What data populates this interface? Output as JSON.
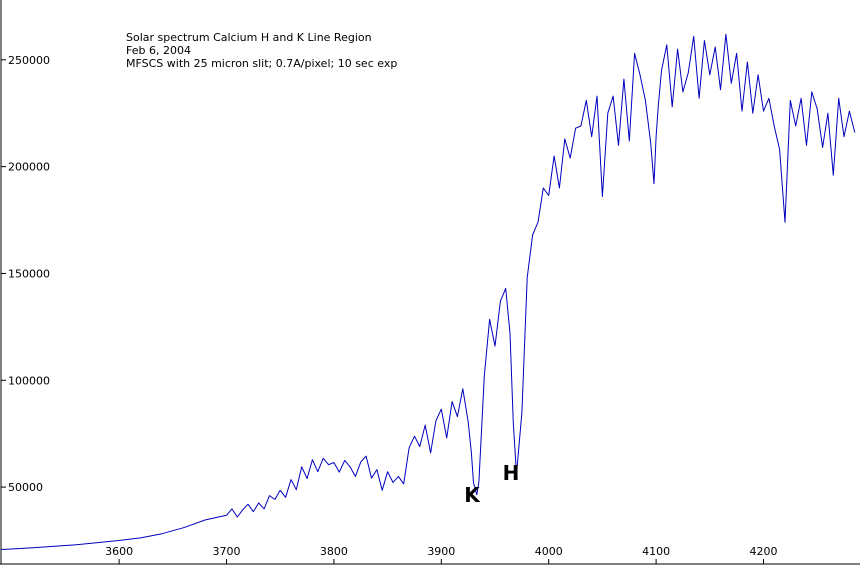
{
  "chart_data": {
    "type": "line",
    "title_lines": [
      "Solar spectrum Calcium H and K Line Region",
      "Feb 6, 2004",
      "MFSCS with 25 micron slit; 0.7A/pixel; 10 sec exp"
    ],
    "xlabel": "",
    "ylabel": "",
    "xlim": [
      3490,
      4288
    ],
    "ylim": [
      14000,
      278000
    ],
    "x_ticks": [
      3600,
      3700,
      3800,
      3900,
      4000,
      4100,
      4200
    ],
    "y_ticks": [
      50000,
      100000,
      150000,
      200000,
      250000
    ],
    "grid": false,
    "legend": "none",
    "line_color": "#0000c0",
    "series": [
      {
        "x": [
          3490,
          3500,
          3520,
          3540,
          3560,
          3580,
          3600,
          3620,
          3640,
          3660,
          3680,
          3700,
          3705,
          3710,
          3715,
          3720,
          3725,
          3730,
          3735,
          3740,
          3745,
          3750,
          3755,
          3760,
          3765,
          3770,
          3775,
          3780,
          3785,
          3790,
          3795,
          3800,
          3805,
          3810,
          3815,
          3820,
          3825,
          3830,
          3835,
          3840,
          3845,
          3850,
          3855,
          3860,
          3865,
          3870,
          3875,
          3880,
          3885,
          3890,
          3895,
          3900,
          3905,
          3910,
          3915,
          3920,
          3925,
          3928,
          3930,
          3933,
          3935,
          3940,
          3945,
          3950,
          3955,
          3960,
          3964,
          3967,
          3970,
          3975,
          3980,
          3985,
          3990,
          3995,
          4000,
          4005,
          4010,
          4015,
          4020,
          4025,
          4030,
          4035,
          4040,
          4045,
          4050,
          4055,
          4060,
          4065,
          4070,
          4075,
          4080,
          4085,
          4090,
          4095,
          4098,
          4100,
          4102,
          4105,
          4110,
          4115,
          4120,
          4125,
          4130,
          4135,
          4140,
          4145,
          4150,
          4155,
          4160,
          4165,
          4170,
          4175,
          4180,
          4185,
          4190,
          4195,
          4200,
          4205,
          4210,
          4215,
          4220,
          4225,
          4230,
          4235,
          4240,
          4245,
          4250,
          4255,
          4260,
          4265,
          4270,
          4275,
          4280,
          4285
        ],
        "values": [
          20800,
          21000,
          21600,
          22300,
          23000,
          24000,
          25000,
          26200,
          28200,
          31000,
          34600,
          36800,
          39800,
          36000,
          39300,
          42000,
          38500,
          42600,
          39800,
          46000,
          44200,
          48500,
          45200,
          53500,
          48800,
          59500,
          54000,
          62800,
          57200,
          63500,
          60500,
          61500,
          57000,
          62500,
          59500,
          55000,
          61800,
          64500,
          54200,
          58200,
          48500,
          57200,
          52200,
          55000,
          51500,
          68400,
          73800,
          69000,
          79000,
          66000,
          81000,
          86500,
          73000,
          90000,
          83000,
          96000,
          80500,
          66000,
          52000,
          46400,
          52500,
          102000,
          128500,
          116000,
          137000,
          143000,
          122000,
          80000,
          56000,
          85000,
          148000,
          168000,
          174000,
          190000,
          186500,
          205000,
          190000,
          213000,
          204000,
          218000,
          219000,
          231000,
          214000,
          233000,
          186000,
          225000,
          233000,
          210000,
          241000,
          212000,
          253000,
          243000,
          231000,
          211000,
          192000,
          214000,
          228000,
          245000,
          257000,
          228000,
          255000,
          235000,
          244000,
          261000,
          232000,
          259000,
          243000,
          256000,
          236000,
          262000,
          239000,
          253000,
          226000,
          249000,
          225000,
          243000,
          226000,
          232000,
          219000,
          208000,
          174000,
          231000,
          219000,
          232000,
          210000,
          235000,
          227000,
          209000,
          225000,
          196000,
          232000,
          214000,
          226000,
          216000
        ]
      }
    ],
    "annotations": [
      "K",
      "H"
    ]
  }
}
